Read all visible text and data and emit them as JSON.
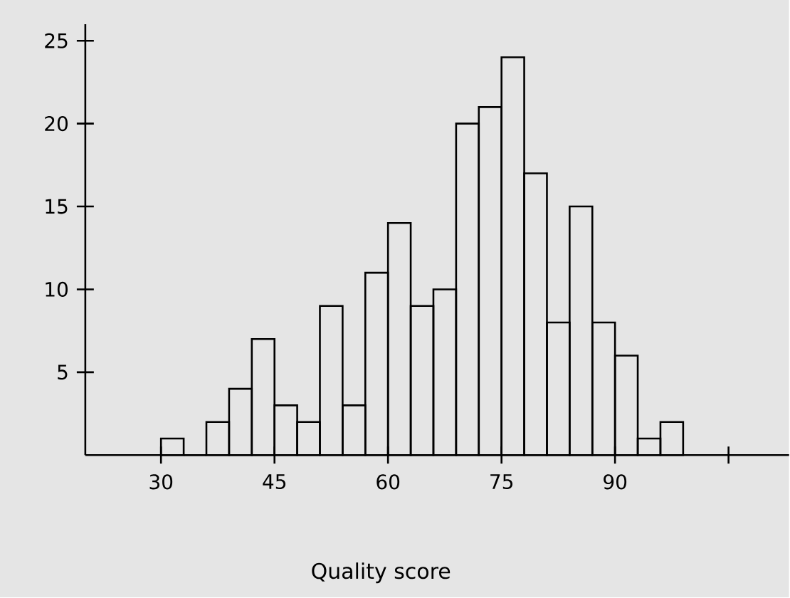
{
  "chart_data": {
    "type": "histogram",
    "xlabel": "Quality score",
    "bins": [
      30,
      33,
      36,
      39,
      42,
      45,
      48,
      51,
      54,
      57,
      60,
      63,
      66,
      69,
      72,
      75,
      78,
      81,
      84,
      87,
      90,
      93,
      96,
      99
    ],
    "values": [
      1,
      0,
      2,
      4,
      7,
      3,
      2,
      9,
      3,
      11,
      14,
      9,
      10,
      20,
      21,
      24,
      17,
      8,
      15,
      8,
      6,
      1,
      2
    ],
    "color": "#000000",
    "xlim": [
      20,
      113
    ],
    "ylim": [
      0,
      26
    ],
    "xticks": [
      30,
      45,
      60,
      75,
      90,
      {
        "value": 105,
        "label": null
      }
    ],
    "yticks": [
      5,
      10,
      15,
      20,
      25
    ],
    "grid": false
  }
}
